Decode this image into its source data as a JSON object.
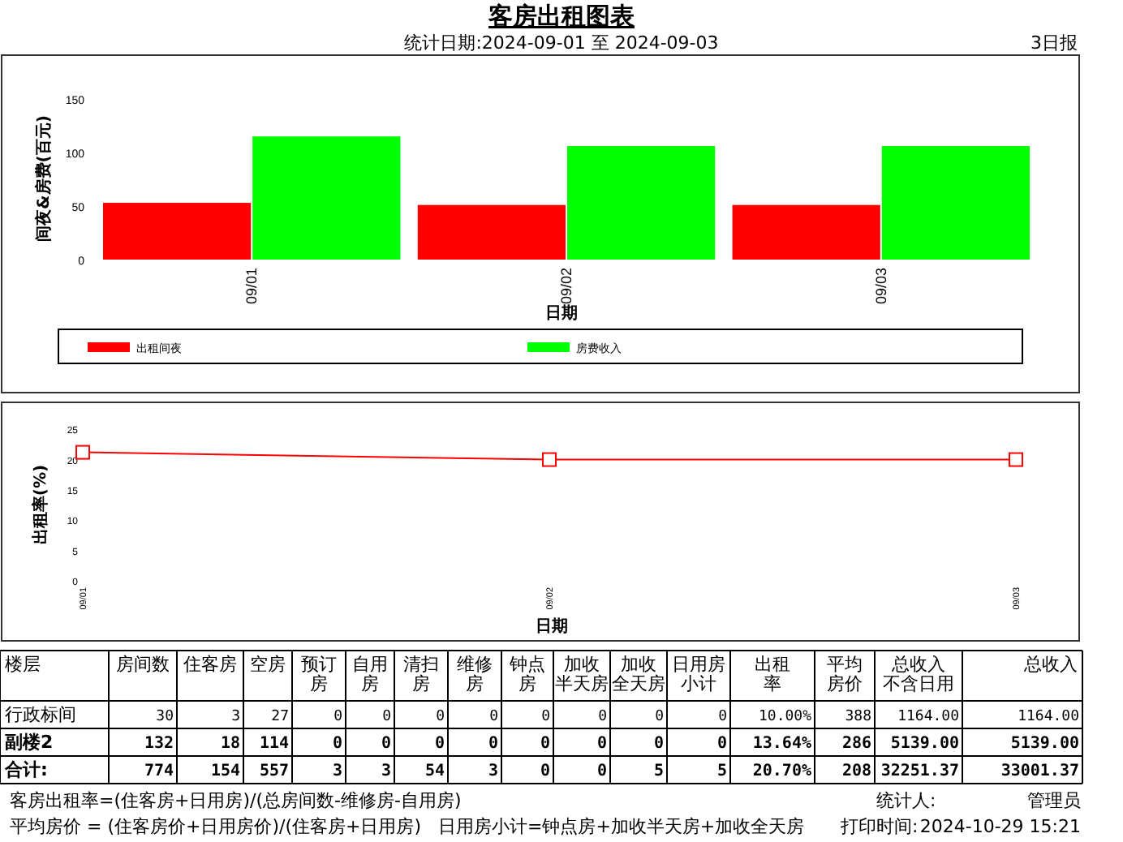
{
  "chart_data": [
    {
      "type": "bar",
      "title": "客房出租图表",
      "subtitle": "统计日期:2024-09-01 至 2024-09-03",
      "annotations": [
        "3日报"
      ],
      "xlabel": "日期",
      "ylabel": "间夜&房费(百元)",
      "categories": [
        "09/01",
        "09/02",
        "09/03"
      ],
      "series": [
        {
          "name": "出租间夜",
          "color": "#ff0000",
          "values": [
            53,
            51,
            51
          ]
        },
        {
          "name": "房费收入",
          "color": "#00ff00",
          "values": [
            115,
            106,
            106
          ]
        }
      ],
      "ylim": [
        0,
        150
      ],
      "yticks": [
        0,
        50,
        100,
        150
      ],
      "legend": "bottom"
    },
    {
      "type": "line",
      "xlabel": "日期",
      "ylabel": "出租率(%)",
      "categories": [
        "09/01",
        "09/02",
        "09/03"
      ],
      "values": [
        21.2,
        20,
        20
      ],
      "color": "#ff0000",
      "marker": "square",
      "ylim": [
        0,
        25
      ],
      "yticks": [
        0,
        5,
        10,
        15,
        20,
        25
      ]
    },
    {
      "type": "other",
      "categories": [
        "楼层",
        "房间数",
        "住客房",
        "空房",
        "预订房",
        "自用房",
        "清扫房",
        "维修房",
        "钟点房",
        "加收半天房",
        "加收全天房",
        "日用房小计",
        "出租率",
        "平均房价",
        "总收入不含日用",
        "总收入"
      ],
      "y_categories": [
        "行政标间",
        "副楼2",
        "合计:"
      ],
      "cell_labels": [
        [
          "30",
          "3",
          "27",
          "0",
          "0",
          "0",
          "0",
          "0",
          "0",
          "0",
          "0",
          "10.00%",
          "388",
          "1164.00",
          "1164.00"
        ],
        [
          "132",
          "18",
          "114",
          "0",
          "0",
          "0",
          "0",
          "0",
          "0",
          "0",
          "0",
          "13.64%",
          "286",
          "5139.00",
          "5139.00"
        ],
        [
          "774",
          "154",
          "557",
          "3",
          "3",
          "54",
          "3",
          "0",
          "0",
          "5",
          "5",
          "20.70%",
          "208",
          "32251.37",
          "33001.37"
        ]
      ],
      "annotations": [
        "客房出租率=(住客房+日用房)/(总房间数-维修房-自用房)",
        "统计人:",
        "管理员",
        "平均房价 = (住客房价+日用房价)/(住客房+日用房)",
        "日用房小计=钟点房+加收半天房+加收全天房",
        "打印时间:",
        "2024-10-29 15:21"
      ]
    }
  ]
}
